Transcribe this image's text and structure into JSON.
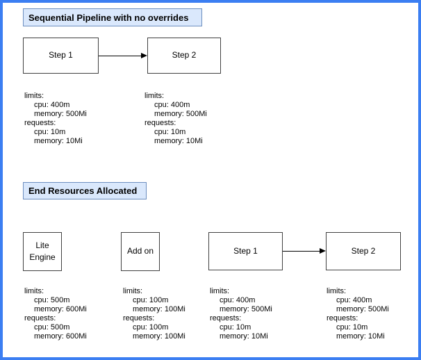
{
  "diagram": {
    "frame_border_color": "#3b7ef2",
    "title_fill_color": "#dae8fc",
    "title_border_color": "#6c8ebf",
    "node_border_color": "#404040"
  },
  "sections": [
    {
      "title": "Sequential Pipeline with no overrides",
      "nodes": [
        {
          "label": "Step 1"
        },
        {
          "label": "Step 2"
        }
      ],
      "resources": [
        {
          "for": "Step 1",
          "lines": [
            {
              "text": "limits:",
              "indent": 0
            },
            {
              "text": "cpu: 400m",
              "indent": 1
            },
            {
              "text": "memory: 500Mi",
              "indent": 1
            },
            {
              "text": "requests:",
              "indent": 0
            },
            {
              "text": "cpu: 10m",
              "indent": 1
            },
            {
              "text": "memory: 10Mi",
              "indent": 1
            }
          ]
        },
        {
          "for": "Step 2",
          "lines": [
            {
              "text": "limits:",
              "indent": 0
            },
            {
              "text": "cpu: 400m",
              "indent": 1
            },
            {
              "text": "memory: 500Mi",
              "indent": 1
            },
            {
              "text": "requests:",
              "indent": 0
            },
            {
              "text": "cpu: 10m",
              "indent": 1
            },
            {
              "text": "memory: 10Mi",
              "indent": 1
            }
          ]
        }
      ]
    },
    {
      "title": "End Resources Allocated",
      "nodes": [
        {
          "label": "Lite Engine"
        },
        {
          "label": "Add on"
        },
        {
          "label": "Step 1"
        },
        {
          "label": "Step 2"
        }
      ],
      "resources": [
        {
          "for": "Lite Engine",
          "lines": [
            {
              "text": "limits:",
              "indent": 0
            },
            {
              "text": "cpu: 500m",
              "indent": 1
            },
            {
              "text": "memory: 600Mi",
              "indent": 1
            },
            {
              "text": "requests:",
              "indent": 0
            },
            {
              "text": "cpu: 500m",
              "indent": 1
            },
            {
              "text": "memory: 600Mi",
              "indent": 1
            }
          ]
        },
        {
          "for": "Add on",
          "lines": [
            {
              "text": "limits:",
              "indent": 0
            },
            {
              "text": "cpu: 100m",
              "indent": 1
            },
            {
              "text": "memory: 100Mi",
              "indent": 1
            },
            {
              "text": "requests:",
              "indent": 0
            },
            {
              "text": "cpu: 100m",
              "indent": 1
            },
            {
              "text": "memory: 100Mi",
              "indent": 1
            }
          ]
        },
        {
          "for": "Step 1",
          "lines": [
            {
              "text": "limits:",
              "indent": 0
            },
            {
              "text": "cpu: 400m",
              "indent": 1
            },
            {
              "text": "memory: 500Mi",
              "indent": 1
            },
            {
              "text": "requests:",
              "indent": 0
            },
            {
              "text": "cpu: 10m",
              "indent": 1
            },
            {
              "text": "memory: 10Mi",
              "indent": 1
            }
          ]
        },
        {
          "for": "Step 2",
          "lines": [
            {
              "text": "limits:",
              "indent": 0
            },
            {
              "text": "cpu: 400m",
              "indent": 1
            },
            {
              "text": "memory: 500Mi",
              "indent": 1
            },
            {
              "text": "requests:",
              "indent": 0
            },
            {
              "text": "cpu: 10m",
              "indent": 1
            },
            {
              "text": "memory: 10Mi",
              "indent": 1
            }
          ]
        }
      ]
    }
  ]
}
